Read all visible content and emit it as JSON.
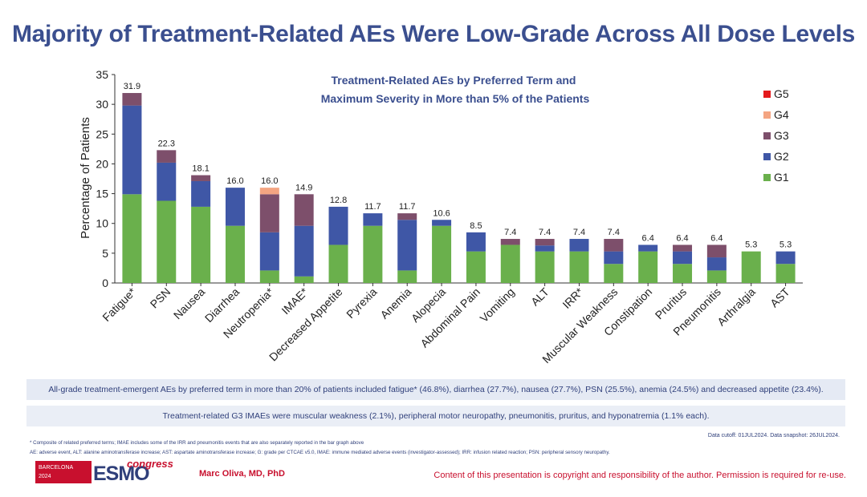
{
  "title": "Majority of Treatment-Related AEs Were Low-Grade Across All Dose Levels",
  "chart_data": {
    "type": "bar",
    "stacked": true,
    "title": "Treatment-Related AEs by Preferred Term and Maximum Severity in More than 5% of the Patients",
    "title_lines": [
      "Treatment-Related AEs by Preferred Term and",
      "Maximum Severity in More than 5% of the Patients"
    ],
    "xlabel": "",
    "ylabel": "Percentage of Patients",
    "ylim": [
      0,
      35
    ],
    "yticks": [
      0,
      5,
      10,
      15,
      20,
      25,
      30,
      35
    ],
    "grid": false,
    "legend_position": "top-right",
    "categories": [
      "Fatigue*",
      "PSN",
      "Nausea",
      "Diarrhea",
      "Neutropenia*",
      "IMAE*",
      "Decreased Appetite",
      "Pyrexia",
      "Anemia",
      "Alopecia",
      "Abdominal Pain",
      "Vomiting",
      "ALT",
      "IRR*",
      "Muscular Weakness",
      "Constipation",
      "Pruritus",
      "Pneumonitis",
      "Arthralgia",
      "AST"
    ],
    "totals": [
      31.9,
      22.3,
      18.1,
      16.0,
      16.0,
      14.9,
      12.8,
      11.7,
      11.7,
      10.6,
      8.5,
      7.4,
      7.4,
      7.4,
      7.4,
      6.4,
      6.4,
      6.4,
      5.3,
      5.3
    ],
    "total_labels": [
      "31.9",
      "22.3",
      "18.1",
      "16.0",
      "16.0",
      "14.9",
      "12.8",
      "11.7",
      "11.7",
      "10.6",
      "8.5",
      "7.4",
      "7.4",
      "7.4",
      "7.4",
      "6.4",
      "6.4",
      "6.4",
      "5.3",
      "5.3"
    ],
    "series": [
      {
        "name": "G1",
        "color": "#6ab04c",
        "values": [
          14.9,
          13.8,
          12.8,
          9.6,
          2.1,
          1.1,
          6.4,
          9.6,
          2.1,
          9.6,
          5.3,
          6.4,
          5.3,
          5.3,
          3.2,
          5.3,
          3.2,
          2.1,
          5.3,
          3.2
        ]
      },
      {
        "name": "G2",
        "color": "#3f57a6",
        "values": [
          14.9,
          6.4,
          4.3,
          6.4,
          6.4,
          8.5,
          6.4,
          2.1,
          8.5,
          1.0,
          3.2,
          0.0,
          1.0,
          2.1,
          2.1,
          1.1,
          2.1,
          2.2,
          0.0,
          2.1
        ]
      },
      {
        "name": "G3",
        "color": "#7d4f6b",
        "values": [
          2.1,
          2.1,
          1.0,
          0.0,
          6.4,
          5.3,
          0.0,
          0.0,
          1.1,
          0.0,
          0.0,
          1.0,
          1.1,
          0.0,
          2.1,
          0.0,
          1.1,
          2.1,
          0.0,
          0.0
        ]
      },
      {
        "name": "G4",
        "color": "#f4a582",
        "values": [
          0,
          0,
          0,
          0,
          1.1,
          0,
          0,
          0,
          0,
          0,
          0,
          0,
          0,
          0,
          0,
          0,
          0,
          0,
          0,
          0
        ]
      },
      {
        "name": "G5",
        "color": "#e41a1c",
        "values": [
          0,
          0,
          0,
          0,
          0,
          0,
          0,
          0,
          0,
          0,
          0,
          0,
          0,
          0,
          0,
          0,
          0,
          0,
          0,
          0
        ]
      }
    ],
    "legend_order": [
      "G5",
      "G4",
      "G3",
      "G2",
      "G1"
    ]
  },
  "notes": {
    "box1": "All-grade treatment-emergent AEs by preferred term in more than 20% of patients included fatigue* (46.8%), diarrhea (27.7%), nausea (27.7%), PSN (25.5%), anemia (24.5%) and decreased appetite (23.4%).",
    "box2": "Treatment-related G3 IMAEs were muscular weakness (2.1%), peripheral motor neuropathy, pneumonitis, pruritus, and hyponatremia (1.1% each).",
    "cutoff": "Data cutoff: 01JUL2024. Data snapshot: 26JUL2024.",
    "footnote1": "* Composite of related preferred terms; IMAE includes some of the IRR and pneumonitis events that are also separately reported in the bar graph above",
    "footnote2": "AE: adverse event, ALT: alanine aminotransferase increase; AST: aspartate aminotransferase increase; G: grade per CTCAE v5.0, IMAE: immune mediated adverse events (investigator-assessed); IRR: infusion related reaction; PSN: peripheral sensory neuropathy."
  },
  "footer": {
    "logo_city": "BARCELONA",
    "logo_year": "2024",
    "logo_esmo": "ESMO",
    "logo_congress": "congress",
    "presenter": "Marc Oliva, MD, PhD",
    "copyright": "Content of this presentation is copyright and responsibility of the author. Permission is required for re-use."
  }
}
